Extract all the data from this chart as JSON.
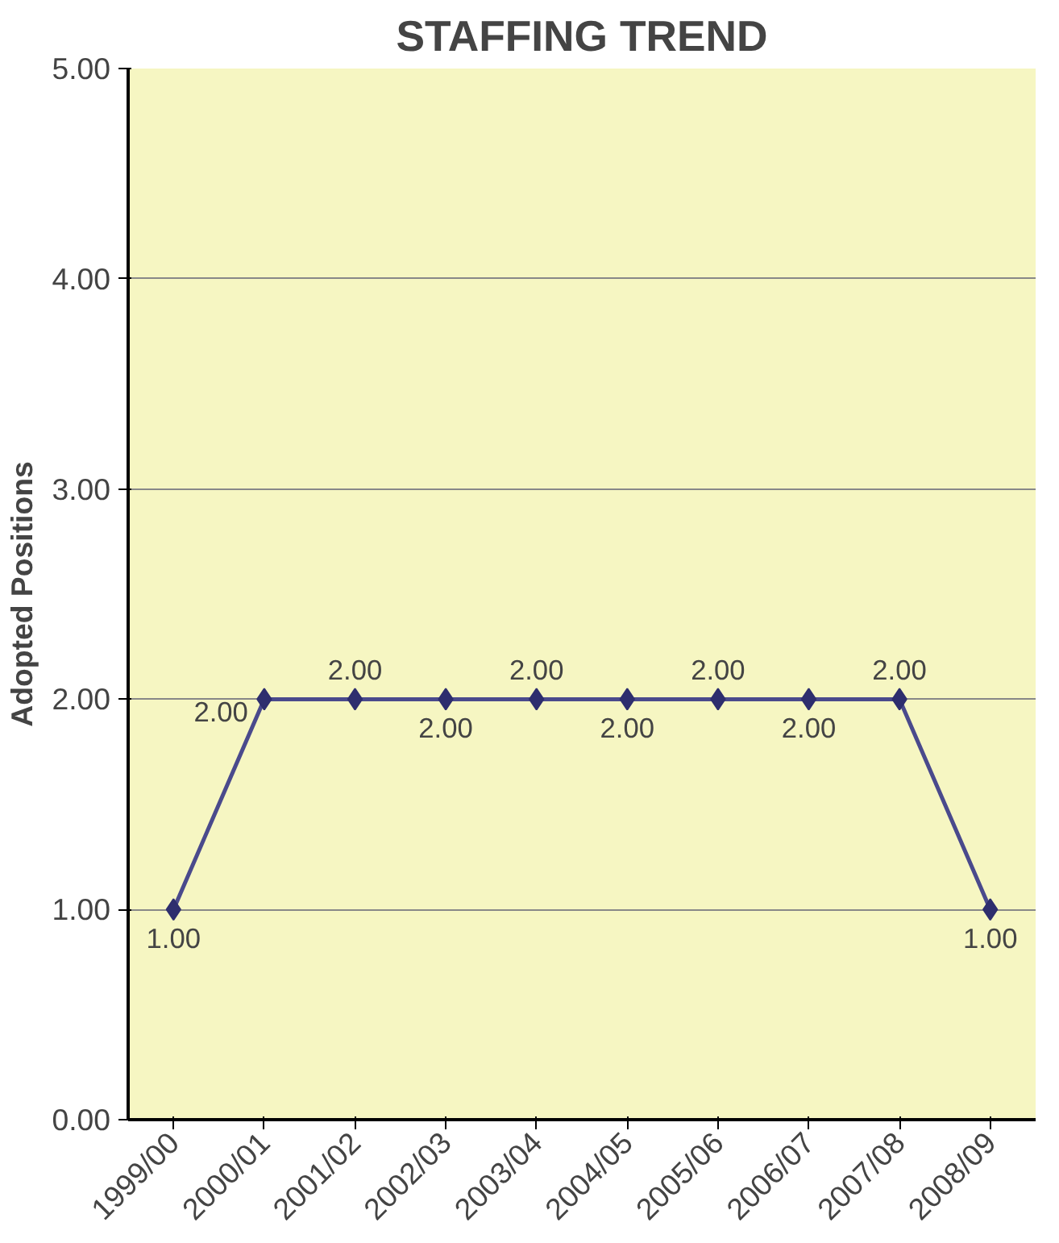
{
  "chart_data": {
    "type": "line",
    "title": "STAFFING TREND",
    "ylabel": "Adopted Positions",
    "categories": [
      "1999/00",
      "2000/01",
      "2001/02",
      "2002/03",
      "2003/04",
      "2004/05",
      "2005/06",
      "2006/07",
      "2007/08",
      "2008/09"
    ],
    "series": [
      {
        "color": "#4a4a8c",
        "values": [
          1,
          2,
          2,
          2,
          2,
          2,
          2,
          2,
          2,
          1
        ],
        "value_labels": [
          "1.00",
          "2.00",
          "2.00",
          "2.00",
          "2.00",
          "2.00",
          "2.00",
          "2.00",
          "2.00",
          "1.00"
        ]
      }
    ],
    "ylim": [
      0,
      5
    ],
    "yticks": [
      {
        "value": 0,
        "label": "0.00"
      },
      {
        "value": 1,
        "label": "1.00"
      },
      {
        "value": 2,
        "label": "2.00"
      },
      {
        "value": 3,
        "label": "3.00"
      },
      {
        "value": 4,
        "label": "4.00"
      },
      {
        "value": 5,
        "label": "5.00"
      }
    ],
    "grid": "y",
    "marker": "diamond",
    "line_style": "solid"
  }
}
